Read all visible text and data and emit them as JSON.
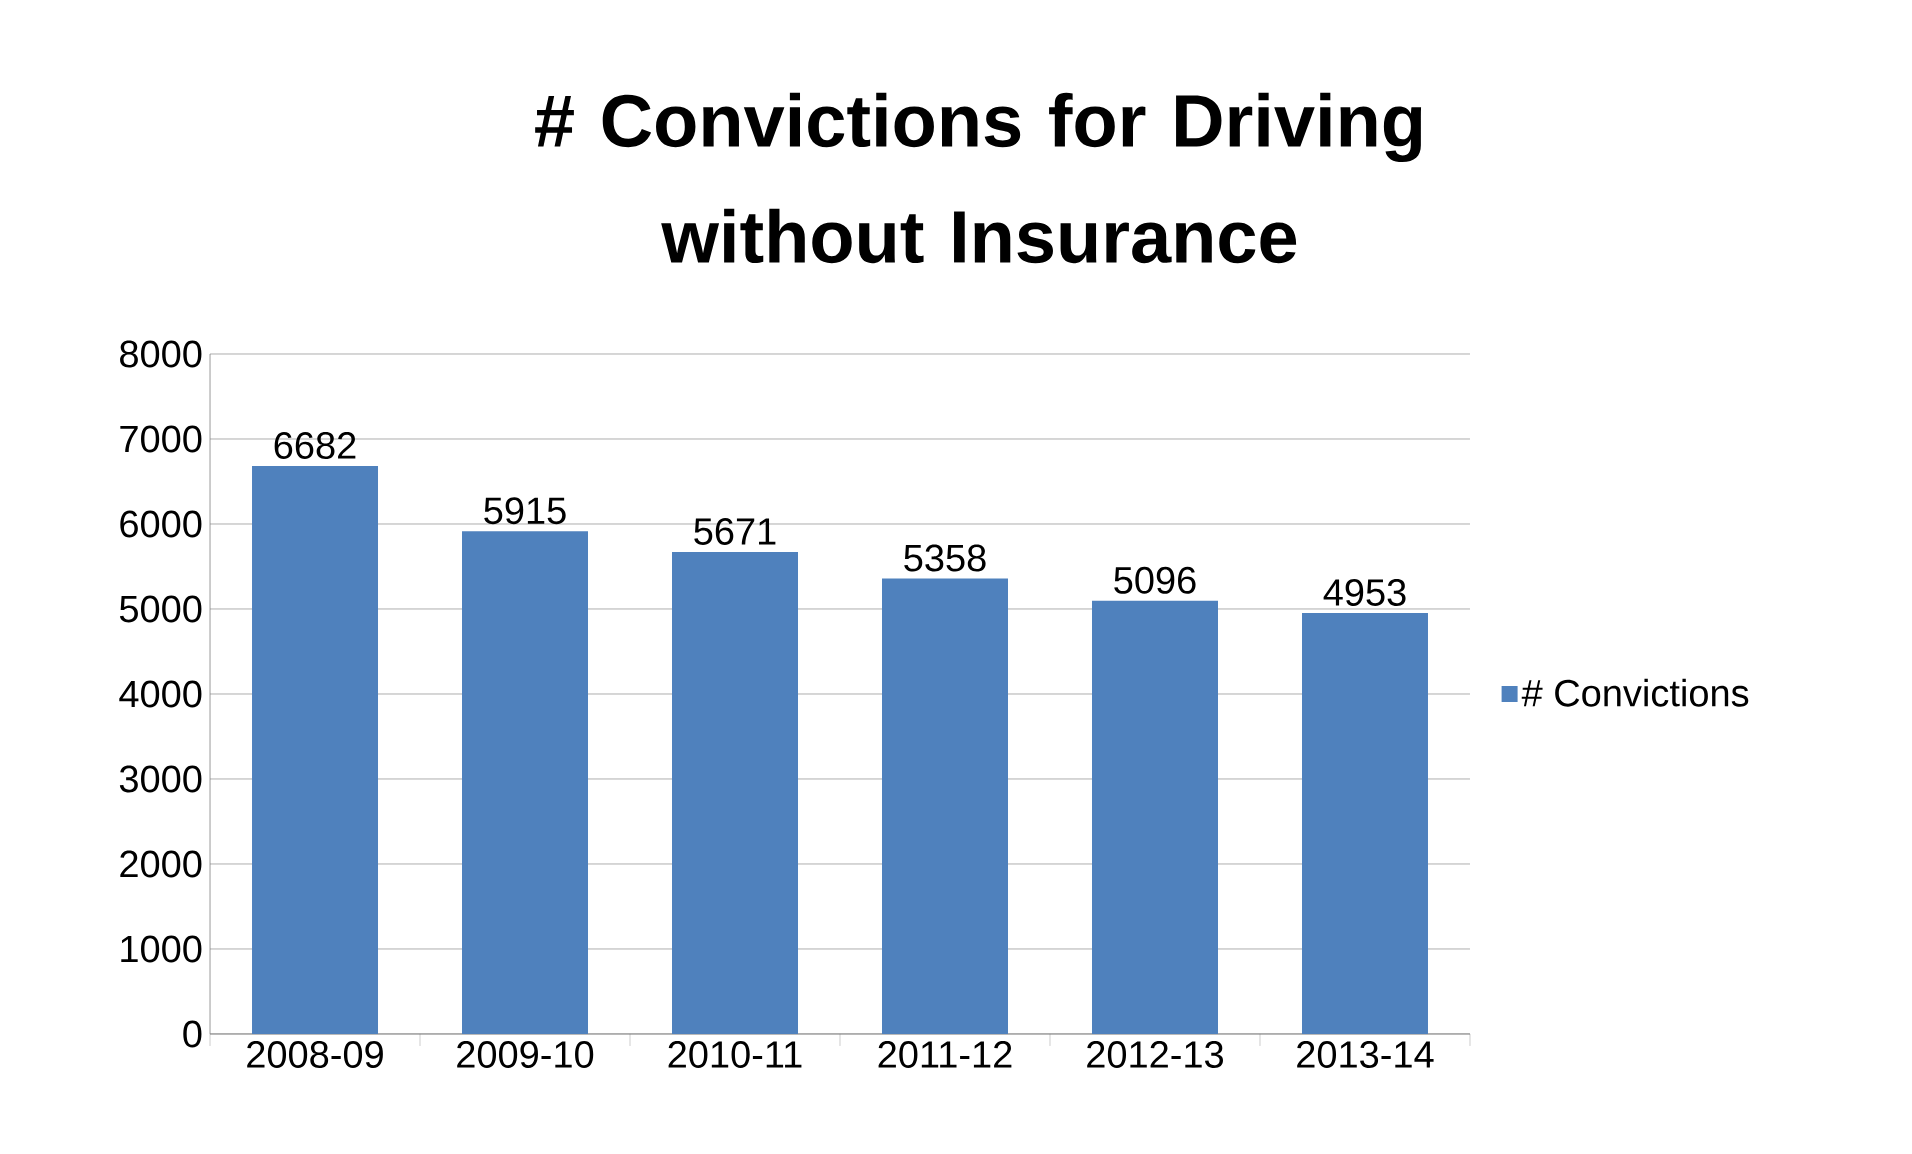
{
  "chart_data": {
    "type": "bar",
    "title": "# Convictions for Driving without Insurance",
    "categories": [
      "2008-09",
      "2009-10",
      "2010-11",
      "2011-12",
      "2012-13",
      "2013-14"
    ],
    "series": [
      {
        "name": "# Convictions",
        "color": "#4f81bd",
        "values": [
          6682,
          5915,
          5671,
          5358,
          5096,
          4953
        ]
      }
    ],
    "ylim": [
      0,
      8000
    ],
    "yticks": [
      0,
      1000,
      2000,
      3000,
      4000,
      5000,
      6000,
      7000,
      8000
    ],
    "grid": "y",
    "legend": "right",
    "data_labels": true
  }
}
